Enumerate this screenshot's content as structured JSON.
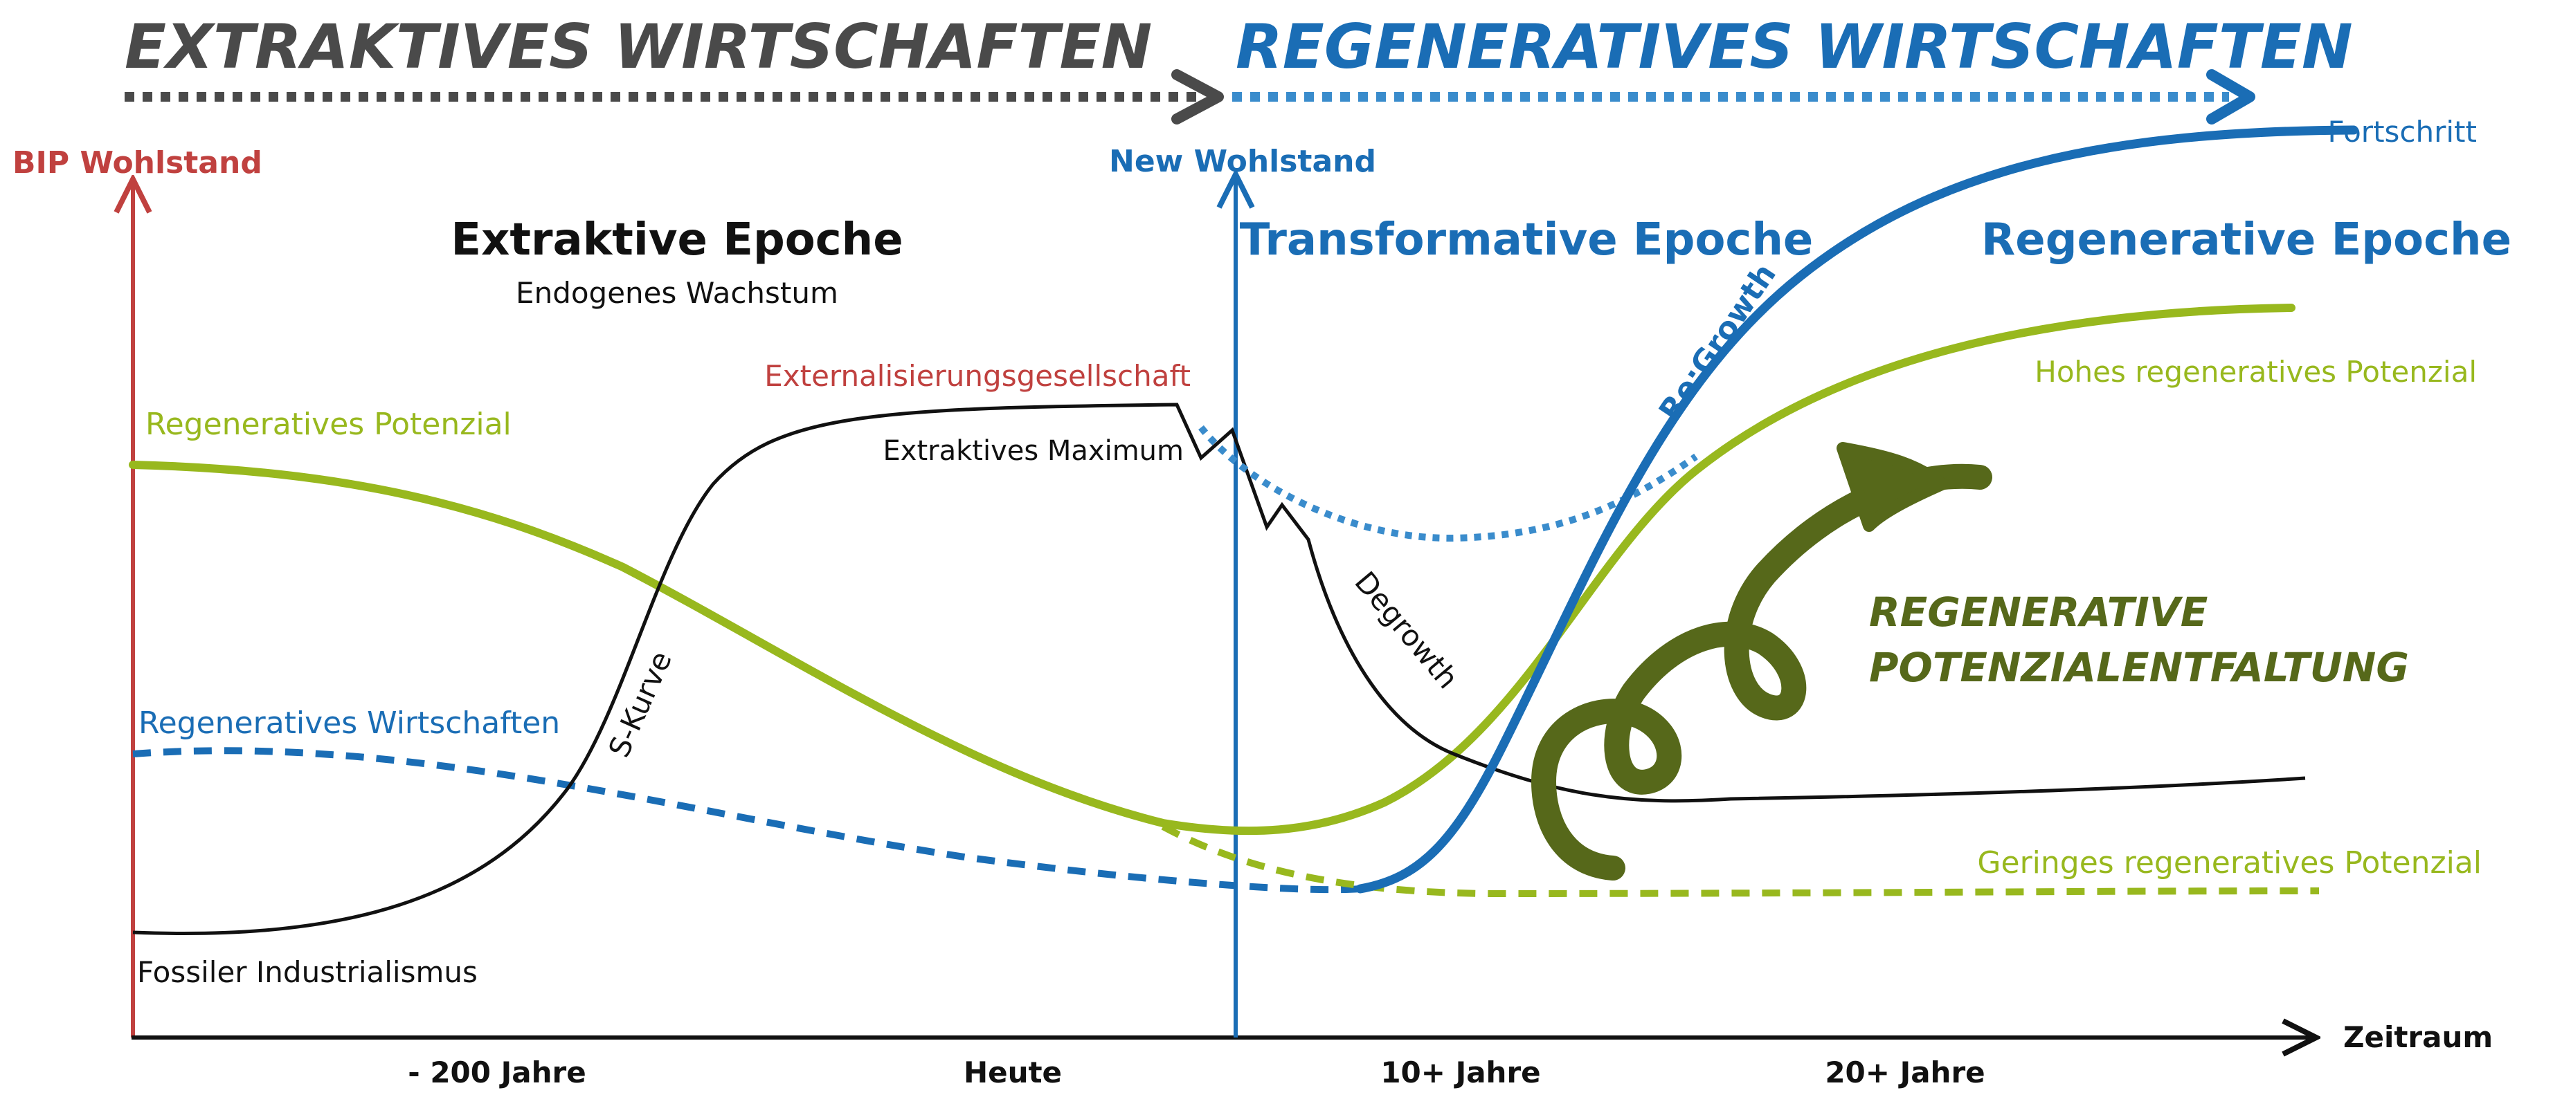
{
  "headers": {
    "extractive": "EXTRAKTIVES WIRTSCHAFTEN",
    "regenerative": "REGENERATIVES WIRTSCHAFTEN"
  },
  "axes": {
    "left_label": "BIP Wohlstand",
    "mid_label": "New  Wohlstand",
    "x_label": "Zeitraum",
    "ticks": [
      "- 200 Jahre",
      "Heute",
      "10+ Jahre",
      "20+ Jahre"
    ]
  },
  "epochs": {
    "extractive_title": "Extraktive Epoche",
    "extractive_subtitle": "Endogenes Wachstum",
    "transformative_title": "Transformative Epoche",
    "regenerative_title": "Regenerative Epoche"
  },
  "labels": {
    "externalisierung": "Externalisierungsgesellschaft",
    "extraktives_maximum": "Extraktives Maximum",
    "regeneratives_potenzial": "Regeneratives Potenzial",
    "regeneratives_wirtschaften": "Regeneratives Wirtschaften",
    "fossiler_industrialismus": "Fossiler Industrialismus",
    "s_kurve": "S-Kurve",
    "degrowth": "Degrowth",
    "regrowth": "Re:Growth",
    "fortschritt": "Fortschritt",
    "hohes_potenzial": "Hohes regeneratives Potenzial",
    "geringes_potenzial": "Geringes regeneratives Potenzial",
    "entfaltung_line1": "REGENERATIVE",
    "entfaltung_line2": "POTENZIALENTFALTUNG"
  },
  "colors": {
    "gray": "#4a4a4a",
    "blue": "#1a6db5",
    "dotblue": "#3a8ccc",
    "red": "#c0413f",
    "green": "#98b81e",
    "darkgreen": "#56681a",
    "black": "#111111"
  }
}
